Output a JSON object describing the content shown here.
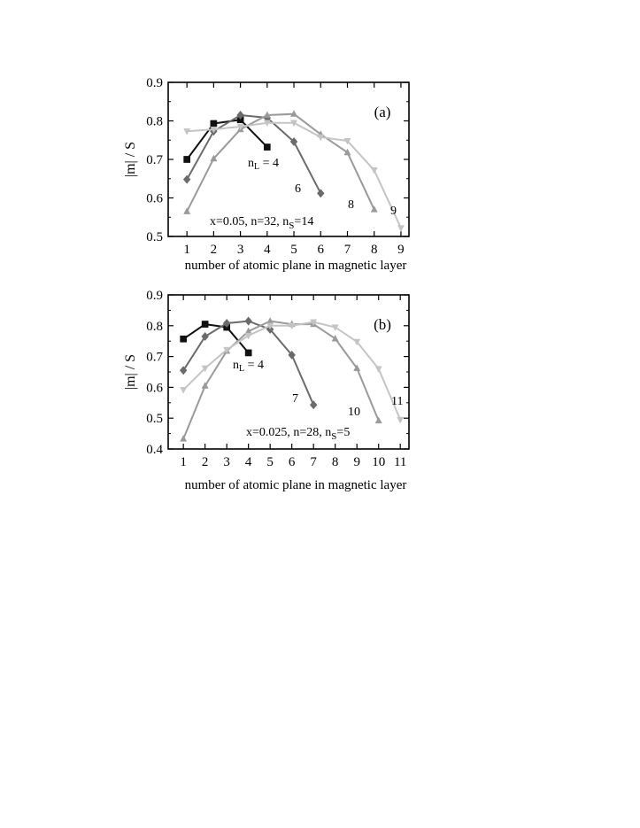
{
  "chart_data": [
    {
      "type": "line",
      "panel_tag": "(a)",
      "ylabel": "|m| / S",
      "xlabel": "number of atomic plane in magnetic layer",
      "xlim": [
        0.3,
        9.3
      ],
      "ylim": [
        0.5,
        0.9
      ],
      "x_ticks": [
        1,
        2,
        3,
        4,
        5,
        6,
        7,
        8,
        9
      ],
      "y_ticks": [
        0.5,
        0.6,
        0.7,
        0.8,
        0.9
      ],
      "y_tick_labels": [
        "0.5",
        "0.6",
        "0.7",
        "0.8",
        "0.9"
      ],
      "params_text": "x=0.05, n=32, n",
      "params_sub": "S",
      "params_tail": "=14",
      "series": [
        {
          "label": "n",
          "label_sub": "L",
          "label_tail": " = 4",
          "marker": "square",
          "color": "#111111",
          "x": [
            1,
            2,
            3,
            4
          ],
          "y": [
            0.7,
            0.793,
            0.803,
            0.732
          ]
        },
        {
          "label": "6",
          "marker": "diamond",
          "color": "#6b6b6b",
          "x": [
            1,
            2,
            3,
            4,
            5,
            6
          ],
          "y": [
            0.648,
            0.773,
            0.815,
            0.808,
            0.746,
            0.612
          ]
        },
        {
          "label": "8",
          "marker": "triangle-up",
          "color": "#9a9a9a",
          "x": [
            1,
            2,
            3,
            4,
            5,
            6,
            7,
            8
          ],
          "y": [
            0.565,
            0.702,
            0.778,
            0.815,
            0.818,
            0.765,
            0.718,
            0.57
          ]
        },
        {
          "label": "9",
          "marker": "triangle-down",
          "color": "#c4c4c4",
          "x": [
            1,
            2,
            3,
            4,
            5,
            6,
            7,
            8,
            9
          ],
          "y": [
            0.773,
            0.778,
            0.785,
            0.795,
            0.795,
            0.758,
            0.748,
            0.672,
            0.522
          ]
        }
      ]
    },
    {
      "type": "line",
      "panel_tag": "(b)",
      "ylabel": "|m| / S",
      "xlabel": "number of atomic plane in magnetic layer",
      "xlim": [
        0.3,
        11.4
      ],
      "ylim": [
        0.4,
        0.9
      ],
      "x_ticks": [
        1,
        2,
        3,
        4,
        5,
        6,
        7,
        8,
        9,
        10,
        11
      ],
      "y_ticks": [
        0.4,
        0.5,
        0.6,
        0.7,
        0.8,
        0.9
      ],
      "y_tick_labels": [
        "0.4",
        "0.5",
        "0.6",
        "0.7",
        "0.8",
        "0.9"
      ],
      "params_text": "x=0.025, n=28, n",
      "params_sub": "S",
      "params_tail": "=5",
      "series": [
        {
          "label": "n",
          "label_sub": "L",
          "label_tail": " = 4",
          "marker": "square",
          "color": "#111111",
          "x": [
            1,
            2,
            3,
            4
          ],
          "y": [
            0.757,
            0.805,
            0.795,
            0.712
          ]
        },
        {
          "label": "7",
          "marker": "diamond",
          "color": "#6b6b6b",
          "x": [
            1,
            2,
            3,
            4,
            5,
            6,
            7
          ],
          "y": [
            0.655,
            0.765,
            0.808,
            0.815,
            0.788,
            0.705,
            0.543
          ]
        },
        {
          "label": "10",
          "marker": "triangle-up",
          "color": "#9a9a9a",
          "x": [
            1,
            2,
            3,
            4,
            5,
            6,
            7,
            8,
            9,
            10
          ],
          "y": [
            0.433,
            0.605,
            0.718,
            0.782,
            0.815,
            0.805,
            0.805,
            0.758,
            0.662,
            0.492
          ]
        },
        {
          "label": "11",
          "marker": "triangle-down",
          "color": "#c4c4c4",
          "x": [
            1,
            2,
            3,
            4,
            5,
            6,
            7,
            8,
            9,
            10,
            11
          ],
          "y": [
            0.592,
            0.662,
            0.722,
            0.768,
            0.8,
            0.8,
            0.812,
            0.795,
            0.748,
            0.66,
            0.495
          ]
        }
      ]
    }
  ]
}
